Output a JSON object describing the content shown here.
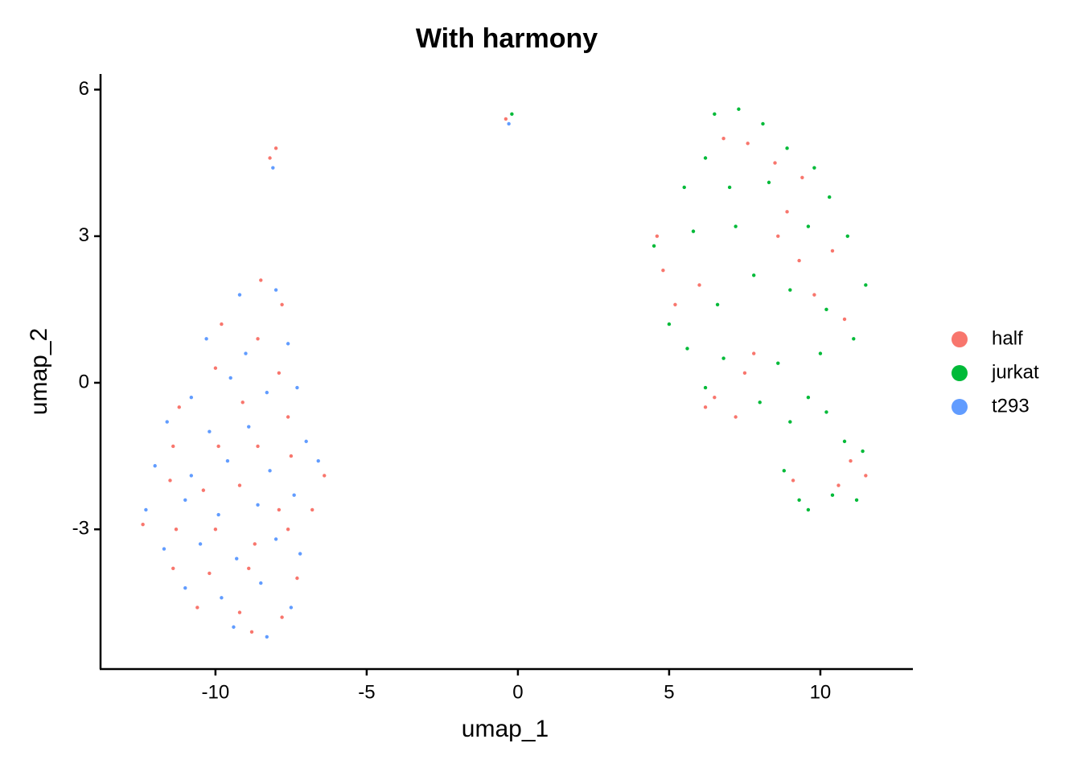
{
  "chart_data": {
    "type": "scatter",
    "title": "With harmony",
    "x_label": "umap_1",
    "y_label": "umap_2",
    "xlim": [
      -13.8,
      13.06
    ],
    "ylim": [
      -5.86,
      6.32
    ],
    "xticks": [
      -10,
      -5,
      0,
      5,
      10
    ],
    "yticks": [
      -3,
      0,
      3,
      6
    ],
    "legend": "right",
    "series": [
      {
        "name": "half",
        "color": "#F8766D",
        "x": [
          -8.5,
          -7.8,
          -9.8,
          -8.6,
          -10.0,
          -7.9,
          -11.2,
          -9.1,
          -7.6,
          -11.4,
          -9.9,
          -8.6,
          -7.5,
          -6.4,
          -11.5,
          -10.4,
          -9.2,
          -7.9,
          -6.8,
          -12.4,
          -11.3,
          -10.0,
          -8.7,
          -7.6,
          -11.4,
          -10.2,
          -8.9,
          -7.3,
          -10.6,
          -9.2,
          -7.8,
          -8.8,
          -8.0,
          -8.2,
          -0.4,
          6.8,
          7.6,
          8.5,
          9.4,
          4.6,
          4.8,
          5.2,
          6.0,
          8.6,
          9.3,
          10.4,
          8.9,
          7.8,
          7.5,
          6.5,
          7.2,
          6.2,
          11.0,
          11.5,
          10.6,
          9.1,
          9.8,
          10.8
        ],
        "y": [
          2.1,
          1.6,
          1.2,
          0.9,
          0.3,
          0.2,
          -0.5,
          -0.4,
          -0.7,
          -1.3,
          -1.3,
          -1.3,
          -1.5,
          -1.9,
          -2.0,
          -2.2,
          -2.1,
          -2.6,
          -2.6,
          -2.9,
          -3.0,
          -3.0,
          -3.3,
          -3.0,
          -3.8,
          -3.9,
          -3.8,
          -4.0,
          -4.6,
          -4.7,
          -4.8,
          -5.1,
          4.8,
          4.6,
          5.4,
          5.0,
          4.9,
          4.5,
          4.2,
          3.0,
          2.3,
          1.6,
          2.0,
          3.0,
          2.5,
          2.7,
          3.5,
          0.6,
          0.2,
          -0.3,
          -0.7,
          -0.5,
          -1.6,
          -1.9,
          -2.1,
          -2.0,
          1.8,
          1.3
        ]
      },
      {
        "name": "jurkat",
        "color": "#00BA38",
        "x": [
          6.5,
          7.3,
          8.1,
          6.2,
          8.9,
          9.8,
          5.5,
          7.0,
          8.3,
          10.3,
          4.5,
          5.8,
          7.2,
          9.6,
          10.9,
          5.0,
          6.6,
          7.8,
          9.0,
          10.2,
          11.5,
          5.6,
          6.8,
          8.6,
          10.0,
          11.1,
          6.2,
          8.0,
          9.0,
          9.6,
          10.2,
          8.8,
          9.3,
          9.6,
          10.8,
          11.4,
          11.2,
          10.4,
          -0.2
        ],
        "y": [
          5.5,
          5.6,
          5.3,
          4.6,
          4.8,
          4.4,
          4.0,
          4.0,
          4.1,
          3.8,
          2.8,
          3.1,
          3.2,
          3.2,
          3.0,
          1.2,
          1.6,
          2.2,
          1.9,
          1.5,
          2.0,
          0.7,
          0.5,
          0.4,
          0.6,
          0.9,
          -0.1,
          -0.4,
          -0.8,
          -0.3,
          -0.6,
          -1.8,
          -2.4,
          -2.6,
          -1.2,
          -1.4,
          -2.4,
          -2.3,
          5.5
        ]
      },
      {
        "name": "t293",
        "color": "#619CFF",
        "x": [
          -9.2,
          -8.0,
          -10.3,
          -9.0,
          -7.6,
          -10.8,
          -9.5,
          -8.3,
          -7.3,
          -11.6,
          -10.2,
          -8.9,
          -7.0,
          -12.0,
          -10.8,
          -9.6,
          -8.2,
          -6.6,
          -12.3,
          -11.0,
          -9.9,
          -8.6,
          -7.4,
          -11.7,
          -10.5,
          -9.3,
          -8.0,
          -7.2,
          -11.0,
          -9.8,
          -8.5,
          -7.5,
          -9.4,
          -8.3,
          -8.1,
          -0.3
        ],
        "y": [
          1.8,
          1.9,
          0.9,
          0.6,
          0.8,
          -0.3,
          0.1,
          -0.2,
          -0.1,
          -0.8,
          -1.0,
          -0.9,
          -1.2,
          -1.7,
          -1.9,
          -1.6,
          -1.8,
          -1.6,
          -2.6,
          -2.4,
          -2.7,
          -2.5,
          -2.3,
          -3.4,
          -3.3,
          -3.6,
          -3.2,
          -3.5,
          -4.2,
          -4.4,
          -4.1,
          -4.6,
          -5.0,
          -5.2,
          4.4,
          5.3
        ]
      }
    ]
  }
}
